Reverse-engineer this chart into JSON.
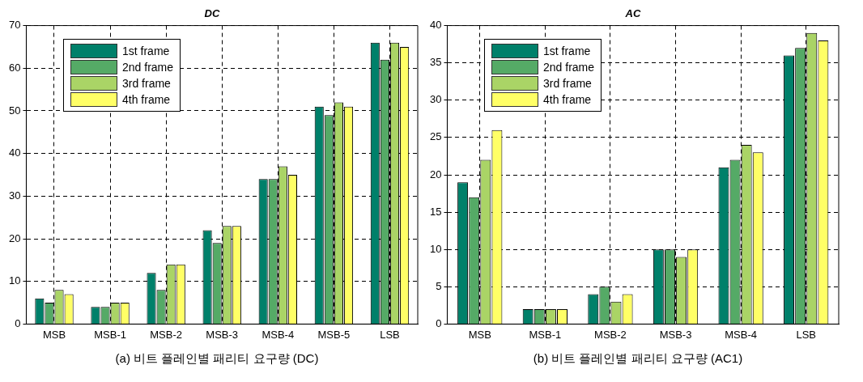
{
  "chart_data": [
    {
      "type": "bar",
      "title": "DC",
      "categories": [
        "MSB",
        "MSB-1",
        "MSB-2",
        "MSB-3",
        "MSB-4",
        "MSB-5",
        "LSB"
      ],
      "series": [
        {
          "name": "1st frame",
          "color": "#00806a",
          "values": [
            6,
            4,
            12,
            22,
            34,
            51,
            66
          ]
        },
        {
          "name": "2nd frame",
          "color": "#55aa66",
          "values": [
            5,
            4,
            8,
            19,
            34,
            49,
            62
          ]
        },
        {
          "name": "3rd frame",
          "color": "#aad466",
          "values": [
            8,
            5,
            14,
            23,
            37,
            52,
            66
          ]
        },
        {
          "name": "4th frame",
          "color": "#ffff66",
          "values": [
            7,
            5,
            14,
            23,
            35,
            51,
            65
          ]
        }
      ],
      "ylim": [
        0,
        70
      ],
      "yticks": [
        0,
        10,
        20,
        30,
        40,
        50,
        60,
        70
      ],
      "grid": true,
      "legend": "top left",
      "annotations": [
        "(a) 비트 플레인별 패리티 요구량 (DC)"
      ]
    },
    {
      "type": "bar",
      "title": "AC",
      "categories": [
        "MSB",
        "MSB-1",
        "MSB-2",
        "MSB-3",
        "MSB-4",
        "LSB"
      ],
      "series": [
        {
          "name": "1st frame",
          "color": "#00806a",
          "values": [
            19,
            2,
            4,
            10,
            21,
            36
          ]
        },
        {
          "name": "2nd frame",
          "color": "#55aa66",
          "values": [
            17,
            2,
            5,
            10,
            22,
            37
          ]
        },
        {
          "name": "3rd frame",
          "color": "#aad466",
          "values": [
            22,
            2,
            3,
            9,
            24,
            39
          ]
        },
        {
          "name": "4th frame",
          "color": "#ffff66",
          "values": [
            26,
            2,
            4,
            10,
            23,
            38
          ]
        }
      ],
      "ylim": [
        0,
        40
      ],
      "yticks": [
        0,
        5,
        10,
        15,
        20,
        25,
        30,
        35,
        40
      ],
      "grid": true,
      "legend": "top left",
      "annotations": [
        "(b) 비트 플레인별 패리티 요구량 (AC1)"
      ]
    }
  ]
}
